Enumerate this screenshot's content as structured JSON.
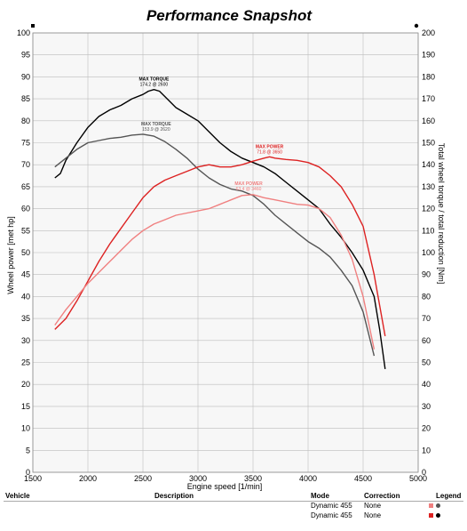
{
  "chart_data": {
    "type": "line",
    "title": "Performance Snapshot",
    "xlabel": "Engine speed [1/min]",
    "ylabel_left": "Wheel power [met hp]",
    "ylabel_right": "Total wheel torque / total reduction [Nm]",
    "xlim": [
      1500,
      5000
    ],
    "ylim_left": [
      0,
      100
    ],
    "ylim_right": [
      0,
      200
    ],
    "x_ticks": [
      1500,
      2000,
      2500,
      3000,
      3500,
      4000,
      4500,
      5000
    ],
    "y_ticks_left": [
      0,
      5,
      10,
      15,
      20,
      25,
      30,
      35,
      40,
      45,
      50,
      55,
      60,
      65,
      70,
      75,
      80,
      85,
      90,
      95,
      100
    ],
    "y_ticks_right": [
      0,
      10,
      20,
      30,
      40,
      50,
      60,
      70,
      80,
      90,
      100,
      110,
      120,
      130,
      140,
      150,
      160,
      170,
      180,
      190,
      200
    ],
    "grid": true,
    "series": [
      {
        "axis": "right",
        "color": "#000000",
        "x": [
          1700,
          1750,
          1800,
          1900,
          2000,
          2100,
          2200,
          2300,
          2400,
          2500,
          2550,
          2600,
          2650,
          2700,
          2800,
          2900,
          3000,
          3100,
          3200,
          3300,
          3400,
          3500,
          3600,
          3700,
          3800,
          3900,
          4000,
          4100,
          4200,
          4300,
          4400,
          4500,
          4600,
          4650,
          4700
        ],
        "values": [
          134,
          136,
          142,
          150,
          157,
          162,
          165,
          167,
          170,
          172,
          173.5,
          174.2,
          173.5,
          171,
          166,
          163,
          160,
          155,
          150,
          146,
          143,
          141,
          139,
          136,
          132,
          128,
          124,
          120,
          113,
          107,
          100,
          92,
          80,
          65,
          47
        ]
      },
      {
        "axis": "right",
        "color": "#555555",
        "x": [
          1700,
          1800,
          1900,
          2000,
          2100,
          2200,
          2300,
          2400,
          2500,
          2600,
          2700,
          2800,
          2900,
          3000,
          3100,
          3200,
          3300,
          3400,
          3500,
          3600,
          3700,
          3800,
          3900,
          4000,
          4100,
          4200,
          4300,
          4400,
          4500,
          4600
        ],
        "values": [
          139,
          143,
          147,
          150,
          151,
          152,
          152.5,
          153.5,
          153.9,
          153,
          150.5,
          147,
          143,
          138,
          134,
          131,
          129,
          128,
          126,
          122,
          117,
          113,
          109,
          105,
          102,
          98,
          92,
          85,
          73,
          53
        ]
      },
      {
        "axis": "left",
        "color": "#dd2222",
        "x": [
          1700,
          1800,
          1900,
          2000,
          2100,
          2200,
          2300,
          2400,
          2500,
          2600,
          2700,
          2800,
          2900,
          3000,
          3100,
          3200,
          3300,
          3400,
          3500,
          3600,
          3650,
          3700,
          3800,
          3900,
          4000,
          4100,
          4200,
          4300,
          4400,
          4500,
          4600,
          4700
        ],
        "values": [
          32.5,
          35,
          39,
          43.5,
          48,
          52,
          55.5,
          59,
          62.5,
          65,
          66.5,
          67.5,
          68.5,
          69.5,
          70,
          69.5,
          69.5,
          70,
          70.8,
          71.5,
          71.8,
          71.5,
          71.2,
          71,
          70.5,
          69.5,
          67.5,
          65,
          61,
          56,
          45,
          31
        ]
      },
      {
        "axis": "left",
        "color": "#f08080",
        "x": [
          1700,
          1800,
          1900,
          2000,
          2100,
          2200,
          2300,
          2400,
          2500,
          2600,
          2700,
          2800,
          2900,
          3000,
          3100,
          3200,
          3300,
          3400,
          3500,
          3600,
          3700,
          3800,
          3900,
          4000,
          4100,
          4200,
          4300,
          4400,
          4500,
          4600
        ],
        "values": [
          33.5,
          37,
          40,
          43,
          45.5,
          48,
          50.5,
          53,
          55,
          56.5,
          57.5,
          58.5,
          59,
          59.5,
          60,
          61,
          62,
          63,
          63.2,
          62.5,
          62,
          61.5,
          61,
          60.8,
          60,
          58,
          54,
          48.5,
          40,
          28
        ]
      }
    ],
    "annotations": [
      {
        "label": "MAX TORQUE",
        "value": "174.2 @ 2600",
        "color": "#000000",
        "axis": "right",
        "x": 2600,
        "y": 174.2
      },
      {
        "label": "MAX TORQUE",
        "value": "153.9 @ 2620",
        "color": "#555555",
        "axis": "right",
        "x": 2620,
        "y": 153.9
      },
      {
        "label": "MAX POWER",
        "value": "71.8 @ 3650",
        "color": "#dd2222",
        "axis": "left",
        "x": 3650,
        "y": 71.8
      },
      {
        "label": "MAX POWER",
        "value": "63.4 @ 3460",
        "color": "#f08080",
        "axis": "left",
        "x": 3460,
        "y": 63.4
      }
    ]
  },
  "table": {
    "headers": {
      "vehicle": "Vehicle",
      "description": "Description",
      "mode": "Mode",
      "correction": "Correction",
      "legend": "Legend"
    },
    "rows": [
      {
        "vehicle": "",
        "description": "",
        "mode": "Dynamic 455",
        "correction": "None",
        "square_color": "#f08080",
        "dot_color": "#555555"
      },
      {
        "vehicle": "",
        "description": "",
        "mode": "Dynamic 455",
        "correction": "None",
        "square_color": "#dd2222",
        "dot_color": "#000000"
      }
    ]
  }
}
